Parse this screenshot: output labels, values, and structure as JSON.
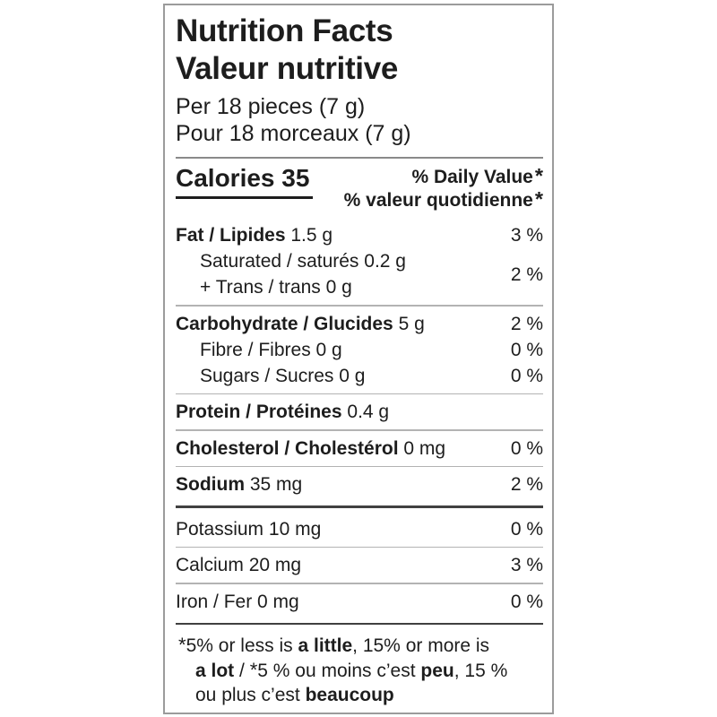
{
  "label": {
    "title_en": "Nutrition Facts",
    "title_fr": "Valeur nutritive",
    "serving_en": "Per 18 pieces (7 g)",
    "serving_fr": "Pour 18 morceaux (7 g)",
    "calories_label": "Calories",
    "calories_value": "35",
    "dv_en": "% Daily Value",
    "dv_fr": "% valeur quotidienne",
    "star": "*",
    "nutrients": {
      "fat": {
        "name": "Fat / Lipides",
        "amount": "1.5 g",
        "dv": "3 %"
      },
      "saturated": {
        "name": "Saturated / saturés",
        "amount": "0.2 g"
      },
      "trans": {
        "name": "+ Trans / trans",
        "amount": "0 g"
      },
      "sat_trans_dv": "2 %",
      "carbohydrate": {
        "name": "Carbohydrate / Glucides",
        "amount": "5 g",
        "dv": "2 %"
      },
      "fibre": {
        "name": "Fibre / Fibres",
        "amount": "0 g",
        "dv": "0 %"
      },
      "sugars": {
        "name": "Sugars / Sucres",
        "amount": "0 g",
        "dv": "0 %"
      },
      "protein": {
        "name": "Protein / Protéines",
        "amount": "0.4 g"
      },
      "cholesterol": {
        "name": "Cholesterol / Cholestérol",
        "amount": "0 mg",
        "dv": "0 %"
      },
      "sodium": {
        "name": "Sodium",
        "amount": "35 mg",
        "dv": "2 %"
      },
      "potassium": {
        "name": "Potassium",
        "amount": "10 mg",
        "dv": "0 %"
      },
      "calcium": {
        "name": "Calcium",
        "amount": "20 mg",
        "dv": "3 %"
      },
      "iron": {
        "name": "Iron / Fer",
        "amount": "0 mg",
        "dv": "0 %"
      }
    },
    "footnote": {
      "l1_ast": "*",
      "l1_t1": "5% or less is ",
      "l1_b1": "a little",
      "l1_t2": ", 15% or more is",
      "l2_b1": "a lot",
      "l2_t1": " / ",
      "l2_ast": "*",
      "l2_t2": "5 % ou moins c’est ",
      "l2_b2": "peu",
      "l2_t3": ", 15 %",
      "l3_t1": "ou plus c’est ",
      "l3_b1": "beaucoup"
    }
  },
  "colors": {
    "text": "#1d1d1d",
    "box_border": "#9b9b9b",
    "rule_thin": "#b3b3b3",
    "rule_medium": "#8a8a8a",
    "rule_thick": "#404040",
    "background": "#ffffff"
  }
}
